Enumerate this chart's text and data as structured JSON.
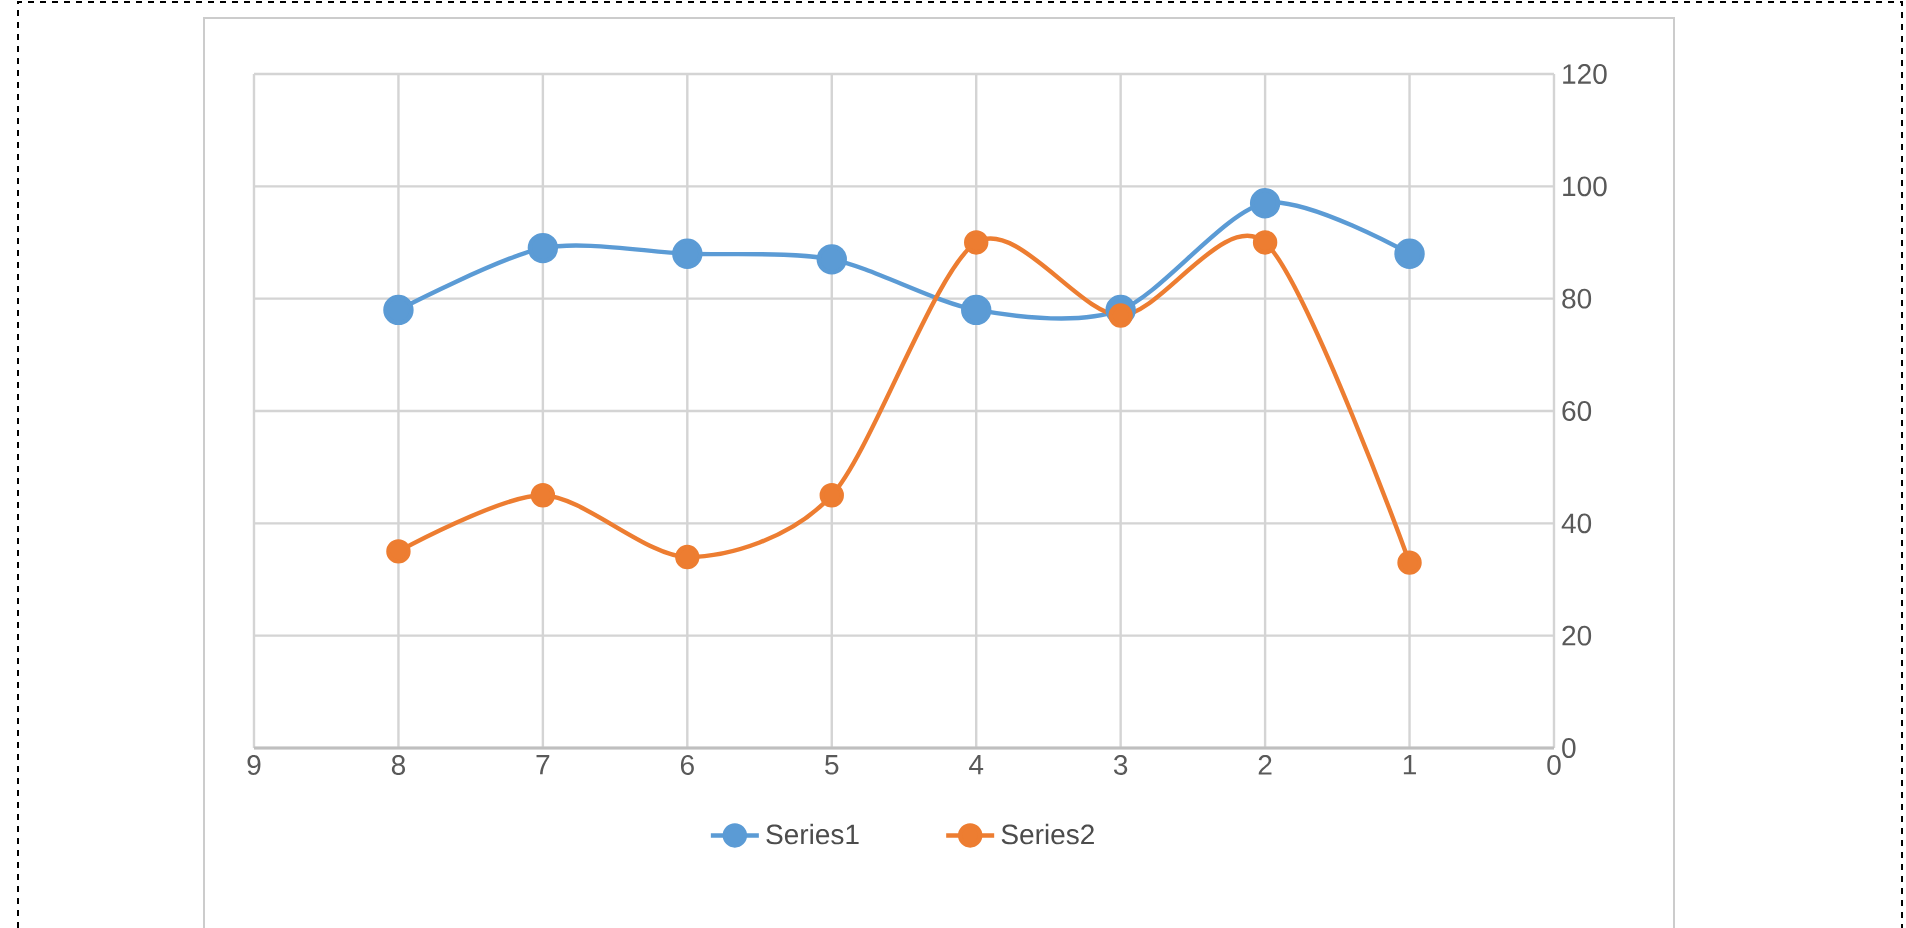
{
  "chart_data": {
    "type": "line",
    "x": [
      8,
      7,
      6,
      5,
      4,
      3,
      2,
      1
    ],
    "series": [
      {
        "name": "Series1",
        "color": "#5b9bd5",
        "values": [
          78,
          89,
          88,
          87,
          78,
          78,
          97,
          88
        ]
      },
      {
        "name": "Series2",
        "color": "#ed7d31",
        "values": [
          35,
          45,
          34,
          45,
          90,
          77,
          90,
          33
        ]
      }
    ],
    "xlim": [
      9,
      0
    ],
    "xticks": [
      0,
      1,
      2,
      3,
      4,
      5,
      6,
      7,
      8,
      9
    ],
    "ylim": [
      0,
      120
    ],
    "yticks": [
      0,
      20,
      40,
      60,
      80,
      100,
      120
    ],
    "grid": true,
    "legend": "bottom",
    "marker": "circle"
  }
}
